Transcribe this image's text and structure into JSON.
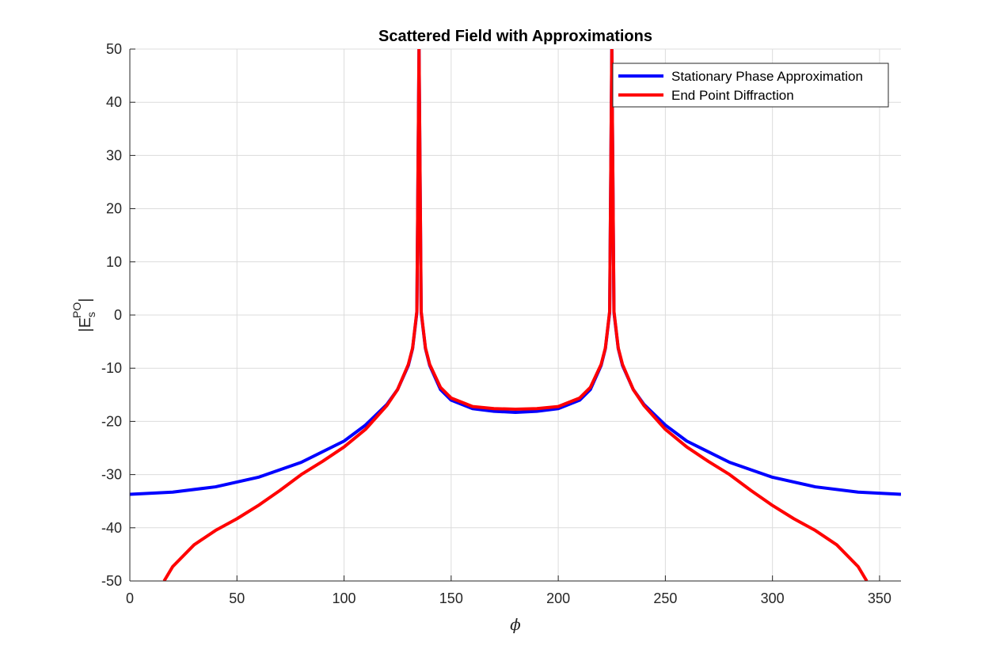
{
  "chart_data": {
    "type": "line",
    "title": "Scattered Field with Approximations",
    "xlabel": "ϕ",
    "ylabel": {
      "base": "|E",
      "sup": "PO",
      "sub": "s",
      "close": "|"
    },
    "xlim": [
      0,
      360
    ],
    "ylim": [
      -50,
      50
    ],
    "xticks": [
      0,
      50,
      100,
      150,
      200,
      250,
      300,
      350
    ],
    "yticks": [
      -50,
      -40,
      -30,
      -20,
      -10,
      0,
      10,
      20,
      30,
      40,
      50
    ],
    "grid": true,
    "legend_position": "top-right",
    "series": [
      {
        "name": "Stationary Phase Approximation",
        "color": "#0000ff",
        "x": [
          0,
          20,
          40,
          60,
          80,
          100,
          110,
          120,
          125,
          130,
          132,
          134,
          135,
          136,
          138,
          140,
          145,
          150,
          160,
          170,
          180,
          190,
          200,
          210,
          215,
          220,
          222,
          224,
          225,
          226,
          228,
          230,
          235,
          240,
          250,
          260,
          280,
          300,
          320,
          340,
          360
        ],
        "y": [
          -33.7,
          -33.3,
          -32.3,
          -30.5,
          -27.7,
          -23.7,
          -20.7,
          -16.8,
          -14.0,
          -9.5,
          -6.3,
          0.5,
          50,
          0.5,
          -6.3,
          -9.5,
          -14.0,
          -16.0,
          -17.6,
          -18.1,
          -18.3,
          -18.1,
          -17.6,
          -16.0,
          -14.0,
          -9.5,
          -6.3,
          0.5,
          50,
          0.5,
          -6.3,
          -9.5,
          -14.0,
          -16.8,
          -20.7,
          -23.7,
          -27.7,
          -30.5,
          -32.3,
          -33.3,
          -33.7
        ]
      },
      {
        "name": "End Point Diffraction",
        "color": "#ff0000",
        "x": [
          16,
          20,
          30,
          40,
          50,
          60,
          70,
          80,
          90,
          100,
          110,
          120,
          125,
          130,
          132,
          134,
          135,
          136,
          138,
          140,
          145,
          150,
          160,
          170,
          180,
          190,
          200,
          210,
          215,
          220,
          222,
          224,
          225,
          226,
          228,
          230,
          235,
          240,
          250,
          260,
          270,
          280,
          290,
          300,
          310,
          320,
          330,
          340,
          344
        ],
        "y": [
          -50,
          -47.3,
          -43.2,
          -40.5,
          -38.3,
          -35.8,
          -33.0,
          -30.0,
          -27.5,
          -24.8,
          -21.5,
          -17.0,
          -14.0,
          -9.3,
          -6.2,
          0.7,
          50,
          0.7,
          -6.2,
          -9.3,
          -13.6,
          -15.6,
          -17.2,
          -17.6,
          -17.7,
          -17.6,
          -17.2,
          -15.6,
          -13.6,
          -9.3,
          -6.2,
          0.7,
          50,
          0.7,
          -6.2,
          -9.3,
          -14.0,
          -17.0,
          -21.5,
          -24.8,
          -27.5,
          -30.0,
          -33.0,
          -35.8,
          -38.3,
          -40.5,
          -43.2,
          -47.3,
          -50
        ]
      }
    ]
  }
}
